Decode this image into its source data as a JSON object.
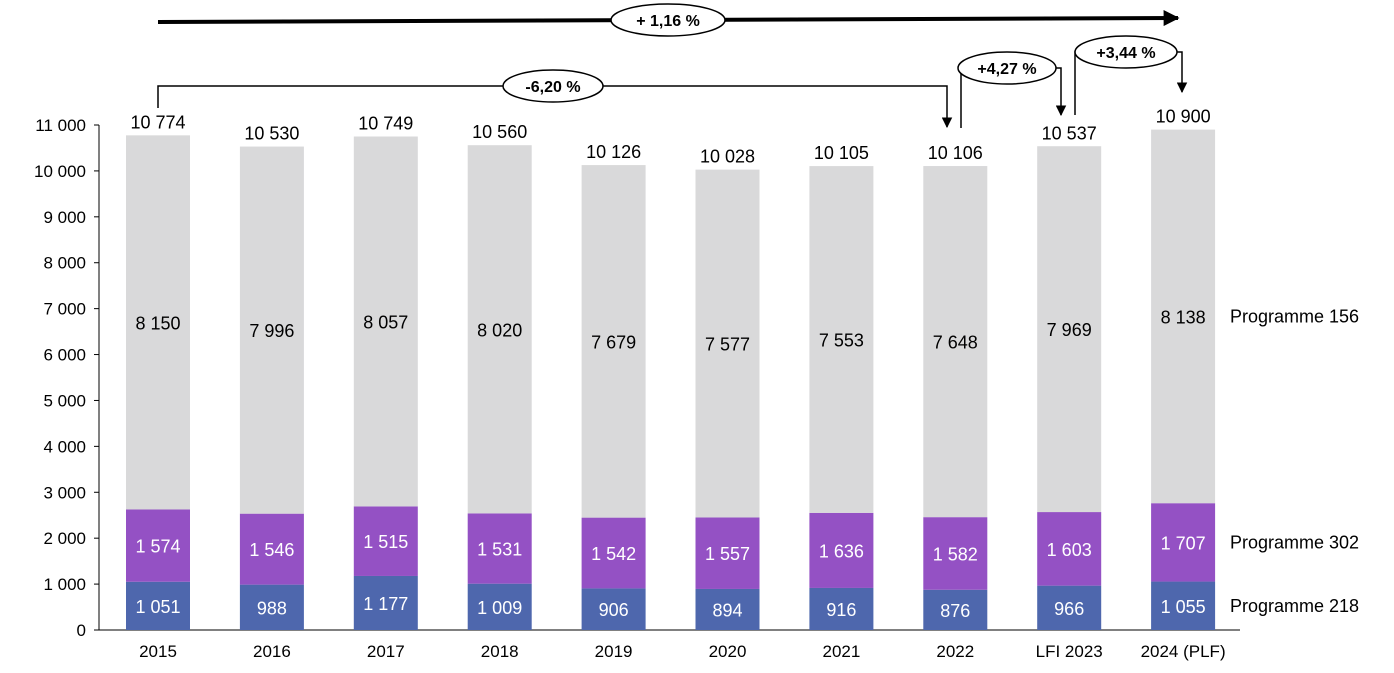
{
  "chart_data": {
    "type": "bar",
    "stacked": true,
    "categories": [
      "2015",
      "2016",
      "2017",
      "2018",
      "2019",
      "2020",
      "2021",
      "2022",
      "LFI 2023",
      "2024 (PLF)"
    ],
    "series": [
      {
        "name": "Programme 218",
        "color": "#4e67ad",
        "values": [
          1051,
          988,
          1177,
          1009,
          906,
          894,
          916,
          876,
          966,
          1055
        ],
        "labels": [
          "1 051",
          "988",
          "1 177",
          "1 009",
          "906",
          "894",
          "916",
          "876",
          "966",
          "1 055"
        ]
      },
      {
        "name": "Programme 302",
        "color": "#9451c4",
        "values": [
          1574,
          1546,
          1515,
          1531,
          1542,
          1557,
          1636,
          1582,
          1603,
          1707
        ],
        "labels": [
          "1 574",
          "1 546",
          "1 515",
          "1 531",
          "1 542",
          "1 557",
          "1 636",
          "1 582",
          "1 603",
          "1 707"
        ]
      },
      {
        "name": "Programme 156",
        "color": "#d9d9da",
        "values": [
          8150,
          7996,
          8057,
          8020,
          7679,
          7577,
          7553,
          7648,
          7969,
          8138
        ],
        "labels": [
          "8 150",
          "7 996",
          "8 057",
          "8 020",
          "7 679",
          "7 577",
          "7 553",
          "7 648",
          "7 969",
          "8 138"
        ]
      }
    ],
    "totals": [
      10774,
      10530,
      10749,
      10560,
      10126,
      10028,
      10105,
      10106,
      10537,
      10900
    ],
    "total_labels": [
      "10 774",
      "10 530",
      "10 749",
      "10 560",
      "10 126",
      "10 028",
      "10 105",
      "10 106",
      "10 537",
      "10 900"
    ],
    "ylim": [
      0,
      11000
    ],
    "yticks": [
      0,
      1000,
      2000,
      3000,
      4000,
      5000,
      6000,
      7000,
      8000,
      9000,
      10000,
      11000
    ],
    "ytick_labels": [
      "0",
      "1 000",
      "2 000",
      "3 000",
      "4 000",
      "5 000",
      "6 000",
      "7 000",
      "8 000",
      "9 000",
      "10 000",
      "11 000"
    ],
    "grid": false,
    "legend": "right, labels beside last bar",
    "annotations": [
      {
        "text": "+ 1,16 %",
        "from": "2015",
        "to": "2024 (PLF)"
      },
      {
        "text": "-6,20 %",
        "from": "2015",
        "to": "2022"
      },
      {
        "text": "+4,27 %",
        "from": "2022",
        "to": "LFI 2023"
      },
      {
        "text": "+3,44 %",
        "from": "LFI 2023",
        "to": "2024 (PLF)"
      }
    ]
  }
}
